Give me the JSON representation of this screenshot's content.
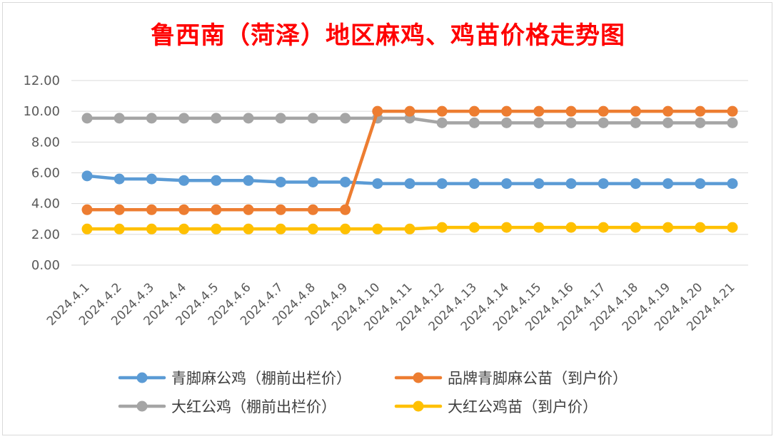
{
  "chart_data": {
    "type": "line",
    "title": "鲁西南（菏泽）地区麻鸡、鸡苗价格走势图",
    "xlabel": "",
    "ylabel": "",
    "categories": [
      "2024.4.1",
      "2024.4.2",
      "2024.4.3",
      "2024.4.4",
      "2024.4.5",
      "2024.4.6",
      "2024.4.7",
      "2024.4.8",
      "2024.4.9",
      "2024.4.10",
      "2024.4.11",
      "2024.4.12",
      "2024.4.13",
      "2024.4.14",
      "2024.4.15",
      "2024.4.16",
      "2024.4.17",
      "2024.4.18",
      "2024.4.19",
      "2024.4.20",
      "2024.4.21"
    ],
    "ylim": [
      0,
      12
    ],
    "yticks": [
      "0.00",
      "2.00",
      "4.00",
      "6.00",
      "8.00",
      "10.00",
      "12.00"
    ],
    "grid": true,
    "legend_position": "bottom",
    "series": [
      {
        "name": "青脚麻公鸡（棚前出栏价）",
        "color": "#5b9bd5",
        "values": [
          5.8,
          5.6,
          5.6,
          5.5,
          5.5,
          5.5,
          5.4,
          5.4,
          5.4,
          5.3,
          5.3,
          5.3,
          5.3,
          5.3,
          5.3,
          5.3,
          5.3,
          5.3,
          5.3,
          5.3,
          5.3
        ]
      },
      {
        "name": "品牌青脚麻公苗（到户价）",
        "color": "#ed7d31",
        "values": [
          3.6,
          3.6,
          3.6,
          3.6,
          3.6,
          3.6,
          3.6,
          3.6,
          3.6,
          10.0,
          10.0,
          10.0,
          10.0,
          10.0,
          10.0,
          10.0,
          10.0,
          10.0,
          10.0,
          10.0,
          10.0
        ]
      },
      {
        "name": "大红公鸡（棚前出栏价）",
        "color": "#a5a5a5",
        "values": [
          9.55,
          9.55,
          9.55,
          9.55,
          9.55,
          9.55,
          9.55,
          9.55,
          9.55,
          9.55,
          9.55,
          9.25,
          9.25,
          9.25,
          9.25,
          9.25,
          9.25,
          9.25,
          9.25,
          9.25,
          9.25
        ]
      },
      {
        "name": "大红公鸡苗（到户价）",
        "color": "#ffc000",
        "values": [
          2.35,
          2.35,
          2.35,
          2.35,
          2.35,
          2.35,
          2.35,
          2.35,
          2.35,
          2.35,
          2.35,
          2.45,
          2.45,
          2.45,
          2.45,
          2.45,
          2.45,
          2.45,
          2.45,
          2.45,
          2.45
        ]
      }
    ]
  }
}
